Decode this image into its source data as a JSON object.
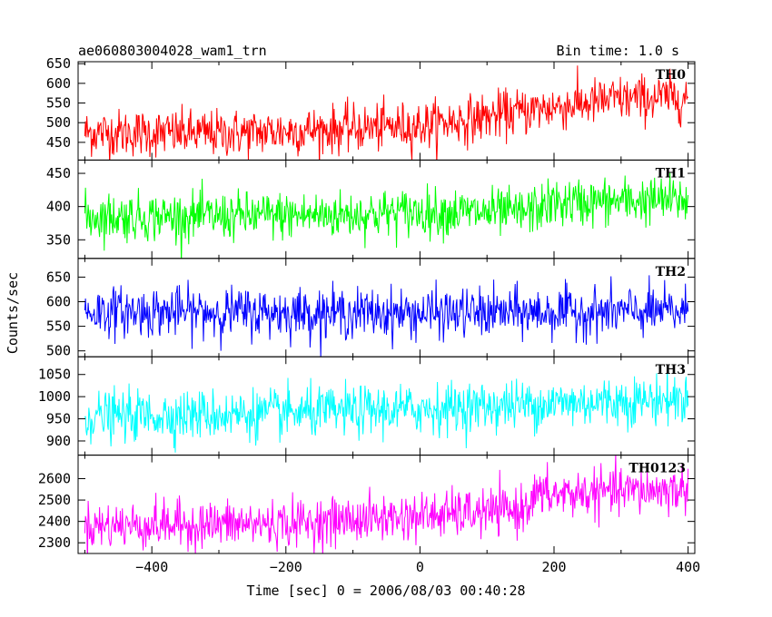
{
  "header": {
    "title": "ae060803004028_wam1_trn",
    "bin_time": "Bin time: 1.0 s"
  },
  "chart_data": {
    "type": "line",
    "xlabel": "Time [sec] 0 = 2006/08/03 00:40:28",
    "ylabel": "Counts/sec",
    "xlim": [
      -510,
      410
    ],
    "x_ticks": [
      -400,
      -200,
      0,
      200,
      400
    ],
    "x_tick_labels": [
      "−400",
      "−200",
      "0",
      "200",
      "400"
    ],
    "x_range_data": [
      -500,
      400
    ],
    "bin_time_s": 1.0,
    "grid": false,
    "panels": [
      {
        "name": "TH0",
        "color": "#ff0000",
        "ylim": [
          405,
          655
        ],
        "y_ticks": [
          450,
          500,
          550,
          600,
          650
        ],
        "trend": [
          [
            -500,
            475
          ],
          [
            -300,
            472
          ],
          [
            -100,
            485
          ],
          [
            0,
            492
          ],
          [
            100,
            515
          ],
          [
            200,
            540
          ],
          [
            300,
            560
          ],
          [
            400,
            565
          ]
        ],
        "noise_sd": 30
      },
      {
        "name": "TH1",
        "color": "#00ff00",
        "ylim": [
          322,
          470
        ],
        "y_ticks": [
          350,
          400,
          450
        ],
        "trend": [
          [
            -500,
            385
          ],
          [
            -300,
            385
          ],
          [
            -100,
            388
          ],
          [
            0,
            392
          ],
          [
            150,
            390
          ],
          [
            200,
            405
          ],
          [
            300,
            408
          ],
          [
            400,
            410
          ]
        ],
        "noise_sd": 18
      },
      {
        "name": "TH2",
        "color": "#0000ff",
        "ylim": [
          488,
          688
        ],
        "y_ticks": [
          500,
          550,
          600,
          650
        ],
        "trend": [
          [
            -500,
            580
          ],
          [
            -200,
            578
          ],
          [
            0,
            576
          ],
          [
            200,
            578
          ],
          [
            400,
            580
          ]
        ],
        "noise_sd": 25
      },
      {
        "name": "TH3",
        "color": "#00ffff",
        "ylim": [
          868,
          1090
        ],
        "y_ticks": [
          900,
          950,
          1000,
          1050
        ],
        "trend": [
          [
            -500,
            955
          ],
          [
            -200,
            962
          ],
          [
            0,
            972
          ],
          [
            200,
            985
          ],
          [
            400,
            995
          ]
        ],
        "noise_sd": 28
      },
      {
        "name": "TH0123",
        "color": "#ff00ff",
        "ylim": [
          2250,
          2710
        ],
        "y_ticks": [
          2300,
          2400,
          2500,
          2600
        ],
        "trend": [
          [
            -500,
            2380
          ],
          [
            -200,
            2390
          ],
          [
            0,
            2425
          ],
          [
            150,
            2450
          ],
          [
            170,
            2520
          ],
          [
            300,
            2540
          ],
          [
            400,
            2550
          ]
        ],
        "noise_sd": 55
      }
    ]
  }
}
